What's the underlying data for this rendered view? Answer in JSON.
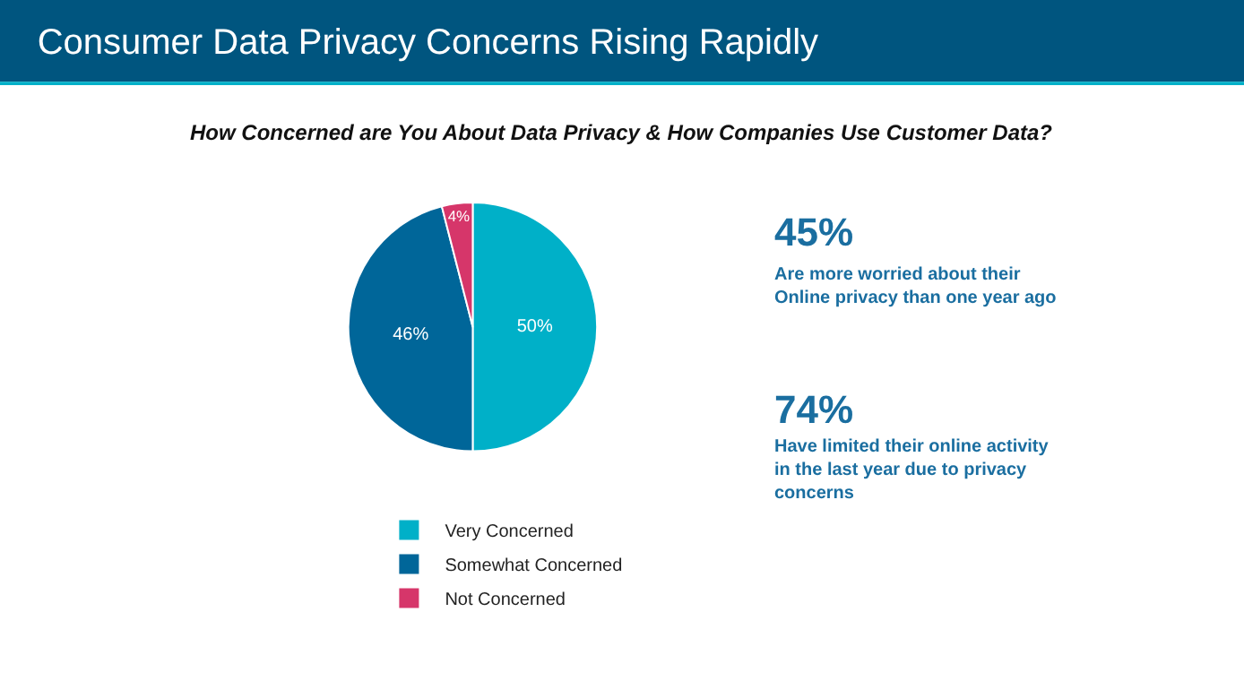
{
  "chart_data": {
    "type": "pie",
    "title": "Consumer Data Privacy Concerns Rising Rapidly",
    "subtitle": "How Concerned are You About Data Privacy & How Companies Use Customer Data?",
    "categories": [
      "Very Concerned",
      "Somewhat Concerned",
      "Not Concerned"
    ],
    "values": [
      50,
      46,
      4
    ],
    "colors": [
      "#00b0c8",
      "#006699",
      "#d6366a"
    ],
    "value_labels": [
      "50%",
      "46%",
      "4%"
    ],
    "legend": "bottom",
    "annotations": [
      "45%",
      "Are more worried about their\nOnline privacy than one year ago",
      "74%",
      "Have limited their online activity\nin the last year due to privacy\nconcerns"
    ]
  }
}
